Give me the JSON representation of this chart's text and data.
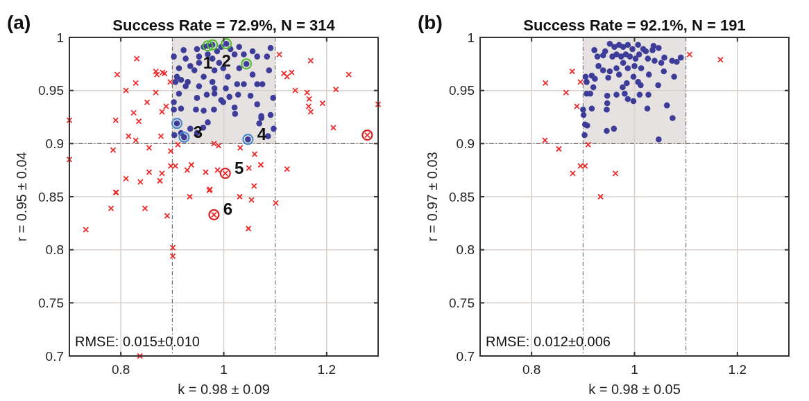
{
  "chart_data": [
    {
      "type": "scatter",
      "title": "Success Rate = 72.9%, N = 314",
      "xlabel": "k = 0.98 ± 0.09",
      "ylabel": "r = 0.95 ± 0.04",
      "xlim": [
        0.7,
        1.3
      ],
      "ylim": [
        0.7,
        1
      ],
      "xticks": [
        0.8,
        1,
        1.2
      ],
      "yticks": [
        0.7,
        0.75,
        0.8,
        0.85,
        0.9,
        0.95,
        1
      ],
      "grid": true,
      "bands": [
        {
          "axis": "x",
          "from": 0.9,
          "to": 1.1,
          "color": "#e6e2e2"
        }
      ],
      "ref_lines": [
        {
          "axis": "x",
          "value": 0.9,
          "line_style": "dashed"
        },
        {
          "axis": "x",
          "value": 1.1,
          "line_style": "dashed"
        },
        {
          "axis": "y",
          "value": 0.9,
          "line_style": "dashed"
        }
      ],
      "annotations": [
        "(a)",
        "RMSE: 0.015±0.010",
        {
          "text": "1",
          "x": 0.969,
          "y": 0.992
        },
        {
          "text": "2",
          "x": 1.005,
          "y": 0.994
        },
        {
          "text": "3",
          "x": 0.923,
          "y": 0.906
        },
        {
          "text": "4",
          "x": 1.047,
          "y": 0.904
        },
        {
          "text": "5",
          "x": 1.003,
          "y": 0.872
        },
        {
          "text": "6",
          "x": 0.981,
          "y": 0.833
        }
      ],
      "series": [
        {
          "color": "#3d3d99",
          "marker": "circle",
          "x": [
            0.903,
            0.922,
            0.909,
            0.906,
            0.917,
            0.93,
            0.913,
            0.926,
            0.935,
            0.943,
            0.952,
            0.948,
            0.961,
            0.952,
            0.969,
            0.978,
            0.987,
            0.995,
            0.991,
            0.982,
            0.999,
            1.013,
            1.021,
            1.03,
            1.039,
            1.056,
            1.065,
            1.03,
            1.056,
            1.065,
            1.039,
            1.026,
            1.008,
            0.978,
            0.961,
            0.952,
            0.926,
            0.913,
            0.903,
            0.903,
            0.917,
            0.946,
            0.961,
            0.981,
            0.969,
            0.96,
            0.948,
            0.935,
            0.917,
            0.904,
            0.967,
            0.982,
            0.995,
            1.011,
            1.028,
            1.052,
            1.021,
            1.022,
            1.065,
            1.069,
            1.073,
            0.948,
            0.999,
            0.982,
            1.004,
            1.091,
            1.088,
            1.096,
            1.091,
            1.097,
            1.086,
            1.073,
            1.075,
            1.084,
            0.969,
            0.978,
            1.005,
            1.044,
            0.909,
            0.923,
            1.047
          ],
          "values": [
            0.982,
            0.988,
            0.963,
            0.958,
            0.96,
            0.958,
            0.971,
            0.98,
            0.973,
            0.969,
            0.982,
            0.989,
            0.991,
            0.976,
            0.984,
            0.98,
            0.987,
            0.991,
            0.976,
            0.969,
            0.971,
            0.989,
            0.984,
            0.991,
            0.984,
            0.987,
            0.982,
            0.971,
            0.965,
            0.956,
            0.956,
            0.956,
            0.963,
            0.958,
            0.963,
            0.954,
            0.954,
            0.947,
            0.939,
            0.932,
            0.933,
            0.932,
            0.931,
            0.932,
            0.92,
            0.915,
            0.91,
            0.914,
            0.91,
            0.908,
            0.946,
            0.947,
            0.941,
            0.944,
            0.946,
            0.945,
            0.934,
            0.928,
            0.937,
            0.919,
            0.926,
            0.943,
            0.939,
            0.952,
            0.952,
            0.99,
            0.969,
            0.943,
            0.927,
            0.914,
            0.907,
            0.924,
            0.956,
            0.982,
            0.992,
            0.993,
            0.994,
            0.975,
            0.919,
            0.906,
            0.904
          ]
        },
        {
          "color": "#ee2b2b",
          "marker": "cross",
          "x": [
            0.7,
            0.7,
            0.831,
            0.793,
            0.81,
            0.829,
            0.868,
            0.87,
            0.881,
            0.885,
            0.896,
            0.868,
            0.851,
            0.888,
            0.88,
            0.825,
            0.835,
            0.79,
            0.815,
            0.829,
            0.878,
            0.785,
            0.855,
            0.897,
            0.911,
            0.981,
            0.99,
            1.032,
            1.06,
            0.897,
            0.906,
            0.855,
            0.88,
            0.929,
            0.937,
            0.965,
            0.988,
            0.81,
            0.838,
            0.876,
            0.973,
            1.049,
            1.072,
            1.059,
            0.791,
            0.732,
            0.781,
            0.79,
            0.847,
            0.89,
            0.901,
            0.901,
            0.837,
            0.934,
            0.972,
            1.031,
            1.054,
            1.048,
            1.108,
            1.117,
            1.123,
            1.132,
            1.139,
            1.169,
            1.162,
            1.166,
            1.165,
            1.169,
            1.192,
            1.218,
            1.243,
            1.213,
            1.3,
            1.123,
            1.101,
            1.003,
            0.981,
            1.279
          ],
          "values": [
            0.922,
            0.885,
            0.98,
            0.965,
            0.95,
            0.957,
            0.968,
            0.965,
            0.967,
            0.966,
            0.958,
            0.948,
            0.939,
            0.935,
            0.93,
            0.929,
            0.921,
            0.922,
            0.907,
            0.903,
            0.907,
            0.894,
            0.896,
            0.893,
            0.899,
            0.9,
            0.898,
            0.896,
            0.89,
            0.879,
            0.879,
            0.873,
            0.872,
            0.875,
            0.88,
            0.873,
            0.875,
            0.867,
            0.864,
            0.865,
            0.857,
            0.877,
            0.88,
            0.86,
            0.854,
            0.819,
            0.839,
            0.854,
            0.839,
            0.832,
            0.802,
            0.794,
            0.7,
            0.85,
            0.856,
            0.85,
            0.847,
            0.82,
            0.984,
            0.966,
            0.963,
            0.967,
            0.95,
            0.978,
            0.948,
            0.942,
            0.935,
            0.93,
            0.938,
            0.951,
            0.965,
            0.915,
            0.937,
            0.876,
            0.844,
            0.872,
            0.833,
            0.908
          ]
        },
        {
          "color": "#55bb33",
          "marker": "circle",
          "x": [
            0.969,
            0.978,
            1.005,
            1.044
          ],
          "values": [
            0.992,
            0.993,
            0.994,
            0.975
          ]
        },
        {
          "color": "#4a8acc",
          "marker": "circle",
          "x": [
            0.909,
            0.923,
            1.047
          ],
          "values": [
            0.919,
            0.906,
            0.904
          ]
        },
        {
          "color": "#d81f1f",
          "marker": "circle",
          "x": [
            1.003,
            0.981,
            1.279
          ],
          "values": [
            0.872,
            0.833,
            0.908
          ]
        }
      ]
    },
    {
      "type": "scatter",
      "title": "Success Rate = 92.1%, N = 191",
      "xlabel": "k = 0.98 ± 0.05",
      "ylabel": "r = 0.97 ± 0.03",
      "xlim": [
        0.7,
        1.3
      ],
      "ylim": [
        0.7,
        1
      ],
      "xticks": [
        0.8,
        1,
        1.2
      ],
      "yticks": [
        0.7,
        0.75,
        0.8,
        0.85,
        0.9,
        0.95,
        1
      ],
      "grid": true,
      "bands": [
        {
          "axis": "x",
          "from": 0.9,
          "to": 1.1,
          "color": "#e6e2e2"
        }
      ],
      "ref_lines": [
        {
          "axis": "x",
          "value": 0.9,
          "line_style": "dashed"
        },
        {
          "axis": "x",
          "value": 1.1,
          "line_style": "dashed"
        },
        {
          "axis": "y",
          "value": 0.9,
          "line_style": "dashed"
        }
      ],
      "annotations": [
        "(b)",
        "RMSE: 0.012±0.006"
      ],
      "series": [
        {
          "color": "#3d3d99",
          "marker": "circle",
          "x": [
            0.922,
            0.952,
            0.943,
            0.961,
            0.97,
            0.978,
            0.987,
            0.996,
            1.007,
            1.017,
            1.022,
            1.037,
            1.047,
            1.035,
            0.928,
            0.939,
            0.957,
            0.965,
            0.974,
            0.983,
            0.991,
            1.002,
            1.009,
            1.026,
            1.039,
            1.058,
            1.073,
            1.082,
            1.09,
            1.052,
            0.93,
            0.939,
            0.952,
            0.965,
            0.978,
            0.987,
            1,
            1.013,
            1.028,
            1.057,
            1.077,
            0.905,
            0.917,
            0.923,
            0.949,
            0.97,
            0.998,
            0.907,
            0.92,
            0.985,
            0.977,
            1.007,
            1.012,
            1.046,
            0.907,
            0.914,
            0.947,
            0.965,
            0.981,
            0.987,
            0.998,
            1.01,
            1.027,
            0.947,
            0.946,
            0.917,
            0.9,
            0.901,
            1.025,
            1.063,
            1.074,
            0.904,
            0.908,
            0.903,
            0.946,
            0.96,
            1.047
          ],
          "values": [
            0.988,
            0.994,
            0.987,
            0.991,
            0.993,
            0.991,
            0.993,
            0.989,
            0.993,
            0.989,
            0.987,
            0.992,
            0.99,
            0.988,
            0.982,
            0.983,
            0.982,
            0.984,
            0.982,
            0.984,
            0.982,
            0.98,
            0.984,
            0.98,
            0.978,
            0.981,
            0.978,
            0.977,
            0.981,
            0.976,
            0.973,
            0.969,
            0.968,
            0.971,
            0.976,
            0.971,
            0.973,
            0.971,
            0.965,
            0.968,
            0.963,
            0.963,
            0.964,
            0.961,
            0.962,
            0.965,
            0.963,
            0.958,
            0.953,
            0.957,
            0.953,
            0.958,
            0.955,
            0.955,
            0.947,
            0.947,
            0.945,
            0.946,
            0.947,
            0.942,
            0.94,
            0.946,
            0.946,
            0.938,
            0.932,
            0.933,
            0.932,
            0.927,
            0.933,
            0.936,
            0.924,
            0.918,
            0.917,
            0.908,
            0.912,
            0.914,
            0.904
          ]
        },
        {
          "color": "#ee2b2b",
          "marker": "cross",
          "x": [
            0.827,
            0.879,
            0.895,
            0.867,
            0.888,
            1.107,
            1.167,
            0.826,
            0.853,
            0.91,
            0.895,
            0.904,
            0.88,
            0.963,
            0.934
          ],
          "values": [
            0.957,
            0.968,
            0.958,
            0.948,
            0.935,
            0.984,
            0.979,
            0.903,
            0.895,
            0.899,
            0.879,
            0.879,
            0.872,
            0.872,
            0.85
          ]
        }
      ]
    }
  ]
}
